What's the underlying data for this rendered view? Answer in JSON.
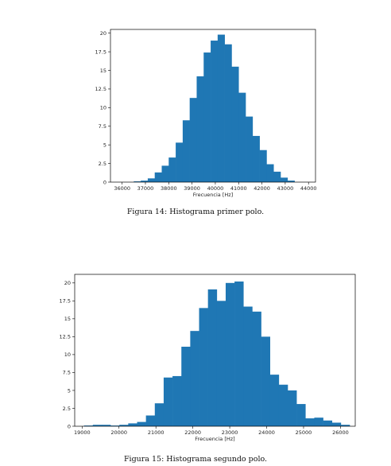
{
  "chart_data": [
    {
      "type": "bar",
      "title": "",
      "xlabel": "Frecuencia [Hz]",
      "ylabel": "",
      "xlim": [
        35500,
        44300
      ],
      "ylim": [
        0,
        20.5
      ],
      "xticks": [
        36000,
        37000,
        38000,
        39000,
        40000,
        41000,
        42000,
        43000,
        44000
      ],
      "yticks": [
        0,
        2.5,
        5,
        7.5,
        10,
        12.5,
        15,
        17.5,
        20
      ],
      "ytick_labels": [
        "0",
        "2.5",
        "5",
        "7.5",
        "10",
        "12.5",
        "15",
        "17.5",
        "20"
      ],
      "color": "#1f77b4",
      "bin_edges": [
        36500,
        36800,
        37100,
        37400,
        37700,
        38000,
        38300,
        38600,
        38900,
        39200,
        39500,
        39800,
        40100,
        40400,
        40700,
        41000,
        41300,
        41600,
        41900,
        42200,
        42500,
        42800,
        43100,
        43400
      ],
      "values": [
        0.1,
        0.2,
        0.5,
        1.3,
        2.2,
        3.3,
        5.3,
        8.3,
        11.3,
        14.2,
        17.4,
        19.0,
        19.8,
        18.5,
        15.5,
        12.0,
        8.8,
        6.2,
        4.3,
        2.4,
        1.4,
        0.6,
        0.2
      ]
    },
    {
      "type": "bar",
      "title": "",
      "xlabel": "Frecuencia [Hz]",
      "ylabel": "",
      "xlim": [
        18800,
        26400
      ],
      "ylim": [
        0,
        21.2
      ],
      "xticks": [
        19000,
        20000,
        21000,
        22000,
        23000,
        24000,
        25000,
        26000
      ],
      "yticks": [
        0,
        2.5,
        5,
        7.5,
        10,
        12.5,
        15,
        17.5,
        20
      ],
      "ytick_labels": [
        "0",
        "2.5",
        "5",
        "7.5",
        "10",
        "12.5",
        "15",
        "17.5",
        "20"
      ],
      "color": "#1f77b4",
      "bin_edges": [
        19050,
        19290,
        19530,
        19770,
        20010,
        20250,
        20490,
        20730,
        20970,
        21210,
        21450,
        21690,
        21930,
        22170,
        22410,
        22650,
        22890,
        23130,
        23370,
        23610,
        23850,
        24090,
        24330,
        24570,
        24810,
        25050,
        25290,
        25530,
        25770,
        26010,
        26250
      ],
      "values": [
        0.1,
        0.2,
        0.2,
        0.1,
        0.2,
        0.4,
        0.6,
        1.5,
        3.2,
        6.8,
        7.0,
        11.1,
        13.3,
        16.5,
        19.1,
        17.5,
        20.0,
        20.2,
        16.7,
        16.0,
        12.5,
        7.2,
        5.8,
        5.0,
        3.1,
        1.1,
        1.2,
        0.8,
        0.5,
        0.2
      ]
    }
  ],
  "captions": {
    "fig14": "Figura 14: Histograma primer polo.",
    "fig15": "Figura 15: Histograma segundo polo."
  }
}
